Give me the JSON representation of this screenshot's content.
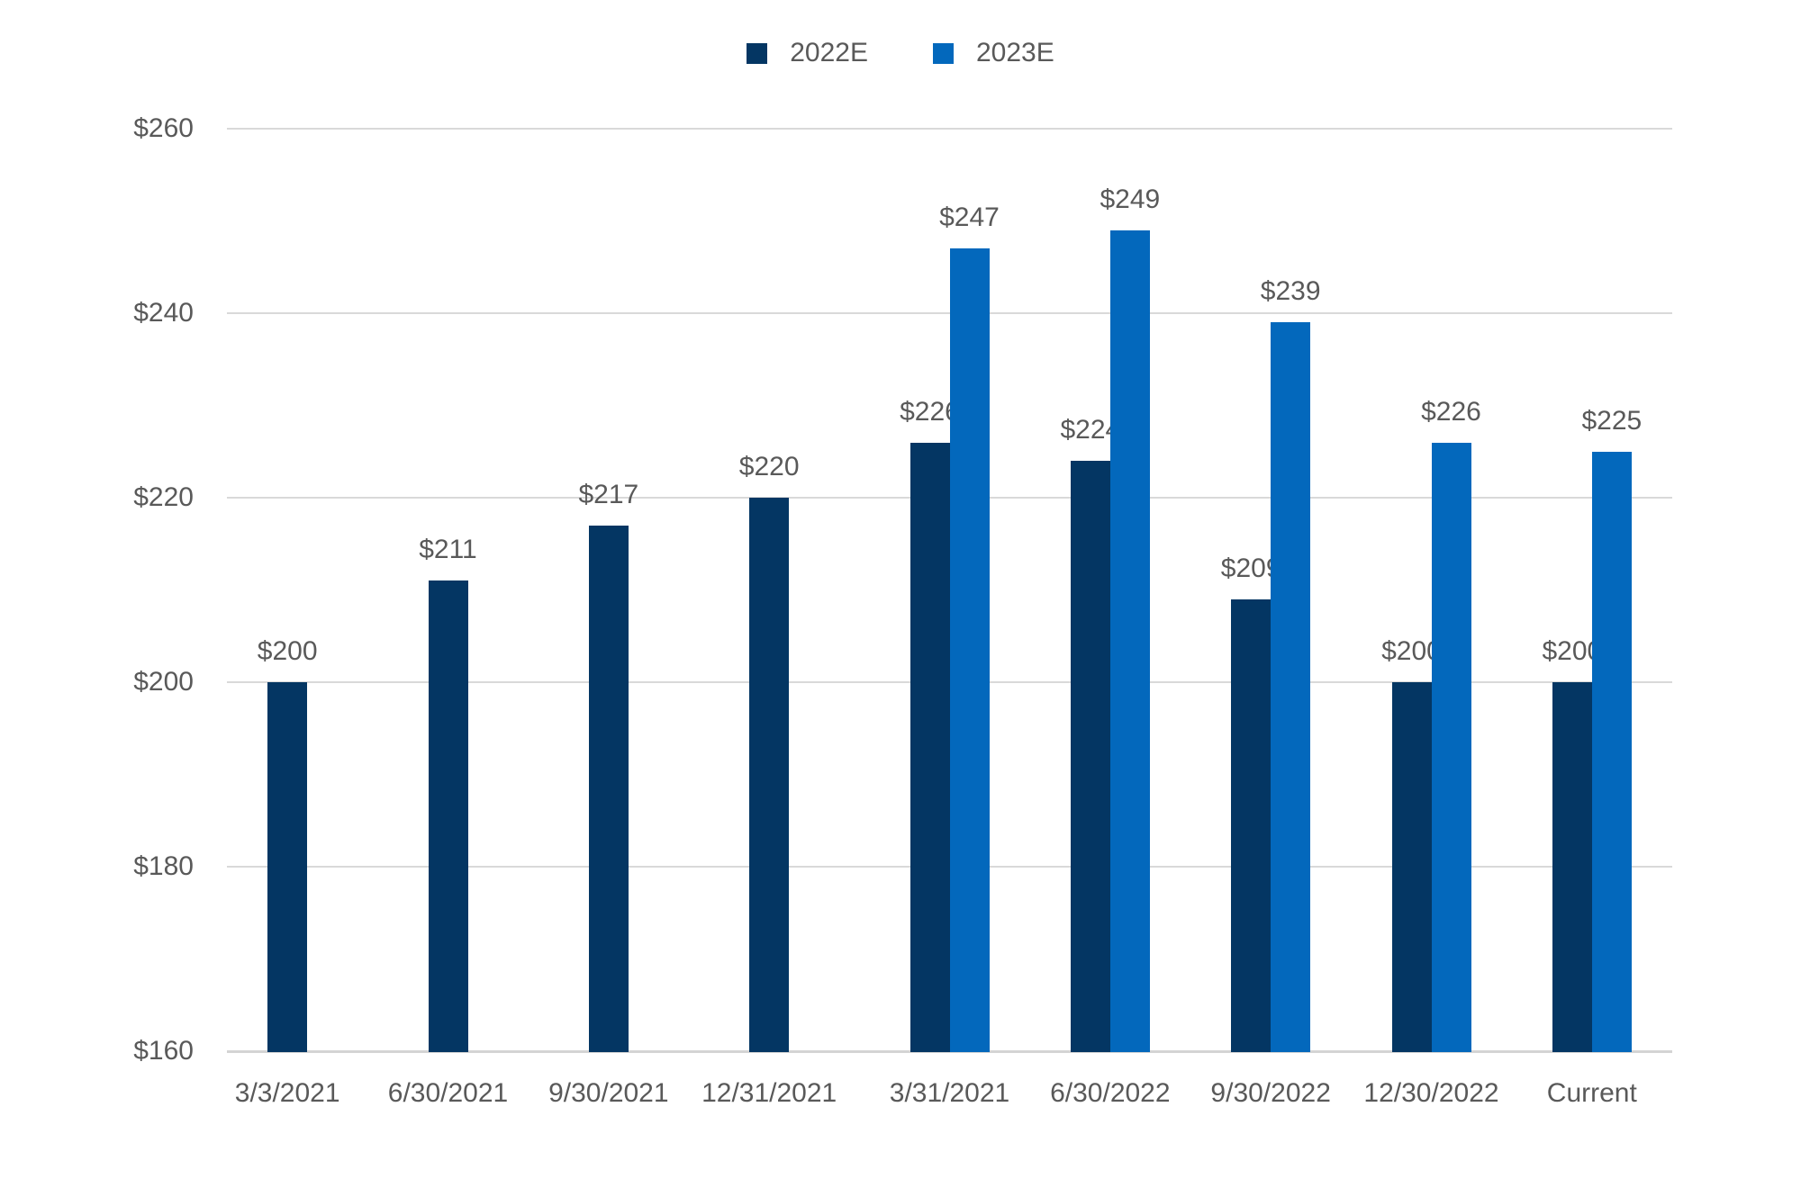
{
  "page": {
    "background_color": "#ffffff",
    "text_color": "#595959",
    "grid_color": "#d9d9d9"
  },
  "chart_data": {
    "type": "bar",
    "title": "",
    "xlabel": "",
    "ylabel": "",
    "categories": [
      "3/3/2021",
      "6/30/2021",
      "9/30/2021",
      "12/31/2021",
      "3/31/2021",
      "6/30/2022",
      "9/30/2022",
      "12/30/2022",
      "Current"
    ],
    "series": [
      {
        "name": "2022E",
        "color": "#043663",
        "values": [
          200,
          211,
          217,
          220,
          226,
          224,
          209,
          200,
          200
        ],
        "labels": [
          "$200",
          "$211",
          "$217",
          "$220",
          "$226",
          "$224",
          "$209",
          "$200",
          "$200"
        ]
      },
      {
        "name": "2023E",
        "color": "#0368BC",
        "values": [
          null,
          null,
          null,
          null,
          247,
          249,
          239,
          226,
          225
        ],
        "labels": [
          null,
          null,
          null,
          null,
          "$247",
          "$249",
          "$239",
          "$226",
          "$225"
        ]
      }
    ],
    "ylim": [
      160,
      260
    ],
    "y_ticks": {
      "values": [
        160,
        180,
        200,
        220,
        240,
        260
      ],
      "labels": [
        "$160",
        "$180",
        "$200",
        "$220",
        "$240",
        "$260"
      ]
    },
    "grid": true,
    "legend_position": "top-center"
  }
}
